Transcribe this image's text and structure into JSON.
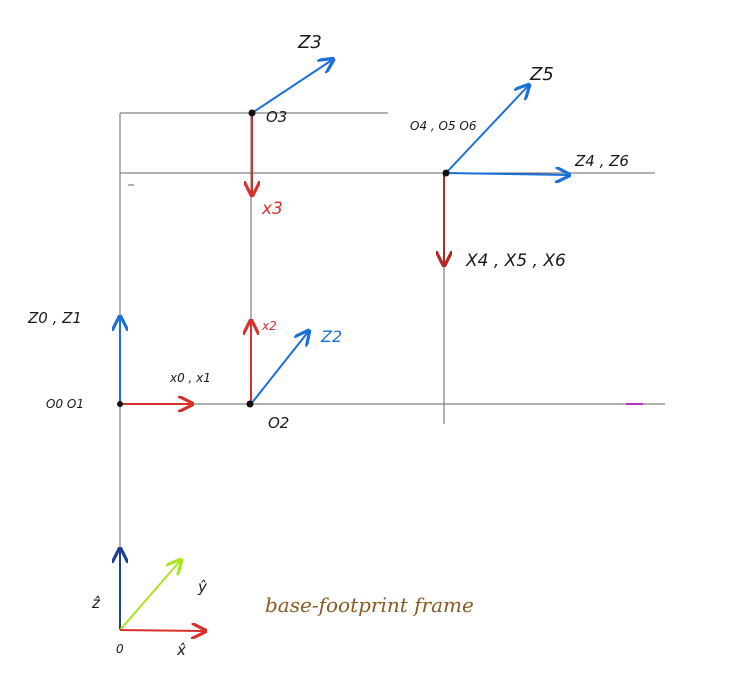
{
  "colors": {
    "grid": "#555555",
    "x_axis": "#d9302c",
    "z_axis": "#1a6fd8",
    "y_hat": "#a8e61d",
    "z_hat": "#1f3f8f",
    "caption": "#8b5a22",
    "point": "#111111",
    "dash_mark": "#b62fc4"
  },
  "labels": {
    "o3": "O3",
    "z3": "Z3",
    "x3": "x3",
    "o4_o5_o6": "O4 , O5 O6",
    "z5": "Z5",
    "z4_z6": "Z4 , Z6",
    "x4_x5_x6": "X4 , X5 , X6",
    "z0_z1": "Z0 , Z1",
    "o0_o1": "O0 O1",
    "x0_x1": "x0 , x1",
    "x2": "x2",
    "z2": "Z2",
    "o2": "O2",
    "z_hat": "ẑ",
    "y_hat": "ŷ",
    "x_hat": "x̂",
    "origin": "0",
    "base_frame": "base-footprint frame"
  }
}
